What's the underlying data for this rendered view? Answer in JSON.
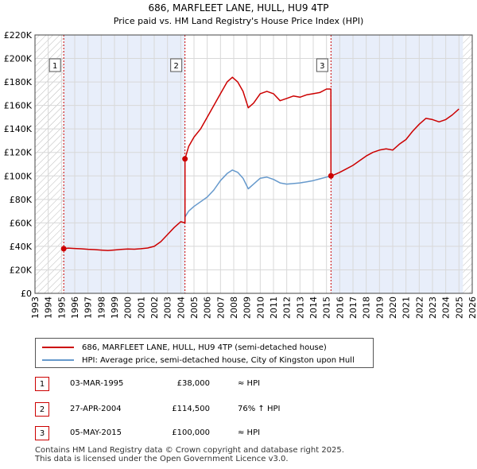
{
  "chart_data": {
    "type": "line",
    "title": "686, MARFLEET LANE, HULL, HU9 4TP",
    "subtitle": "Price paid vs. HM Land Registry's House Price Index (HPI)",
    "xlim": [
      1993,
      2026
    ],
    "ylim": [
      0,
      220000
    ],
    "x_ticks": [
      1993,
      1994,
      1995,
      1996,
      1997,
      1998,
      1999,
      2000,
      2001,
      2002,
      2003,
      2004,
      2005,
      2006,
      2007,
      2008,
      2009,
      2010,
      2011,
      2012,
      2013,
      2014,
      2015,
      2016,
      2017,
      2018,
      2019,
      2020,
      2021,
      2022,
      2023,
      2024,
      2025,
      2026
    ],
    "y_ticks": [
      0,
      20000,
      40000,
      60000,
      80000,
      100000,
      120000,
      140000,
      160000,
      180000,
      200000,
      220000
    ],
    "y_tick_labels": [
      "£0",
      "£20K",
      "£40K",
      "£60K",
      "£80K",
      "£100K",
      "£120K",
      "£140K",
      "£160K",
      "£180K",
      "£200K",
      "£220K"
    ],
    "shaded_ranges": [
      [
        1995.17,
        2004.32
      ],
      [
        2015.34,
        2025.3
      ]
    ],
    "hatched_ranges": [
      [
        1993,
        1995.17
      ],
      [
        2025.3,
        2026
      ]
    ],
    "series": [
      {
        "name": "686, MARFLEET LANE, HULL, HU9 4TP (semi-detached house)",
        "color": "#cc0000",
        "points": [
          [
            1995.17,
            38000
          ],
          [
            1995.5,
            38500
          ],
          [
            1996,
            38200
          ],
          [
            1996.5,
            37900
          ],
          [
            1997,
            37500
          ],
          [
            1997.5,
            37200
          ],
          [
            1998,
            36800
          ],
          [
            1998.5,
            36500
          ],
          [
            1999,
            36900
          ],
          [
            1999.5,
            37400
          ],
          [
            2000,
            37800
          ],
          [
            2000.5,
            37600
          ],
          [
            2001,
            38000
          ],
          [
            2001.5,
            38600
          ],
          [
            2002,
            40000
          ],
          [
            2002.5,
            44000
          ],
          [
            2003,
            50000
          ],
          [
            2003.5,
            56000
          ],
          [
            2004,
            61000
          ],
          [
            2004.32,
            60000
          ],
          [
            2004.32,
            114500
          ],
          [
            2004.6,
            125000
          ],
          [
            2005,
            133000
          ],
          [
            2005.5,
            140000
          ],
          [
            2006,
            150000
          ],
          [
            2006.5,
            160000
          ],
          [
            2007,
            170000
          ],
          [
            2007.5,
            180000
          ],
          [
            2007.9,
            184000
          ],
          [
            2008.3,
            180000
          ],
          [
            2008.7,
            172000
          ],
          [
            2009.1,
            158000
          ],
          [
            2009.5,
            162000
          ],
          [
            2010,
            170000
          ],
          [
            2010.5,
            172000
          ],
          [
            2011,
            170000
          ],
          [
            2011.5,
            164000
          ],
          [
            2012,
            166000
          ],
          [
            2012.5,
            168000
          ],
          [
            2013,
            167000
          ],
          [
            2013.5,
            169000
          ],
          [
            2014,
            170000
          ],
          [
            2014.5,
            171000
          ],
          [
            2015,
            174000
          ],
          [
            2015.33,
            174000
          ],
          [
            2015.34,
            100000
          ],
          [
            2015.7,
            101500
          ],
          [
            2016,
            103000
          ],
          [
            2016.5,
            106000
          ],
          [
            2017,
            109000
          ],
          [
            2017.5,
            113000
          ],
          [
            2018,
            117000
          ],
          [
            2018.5,
            120000
          ],
          [
            2019,
            122000
          ],
          [
            2019.5,
            123000
          ],
          [
            2020,
            122000
          ],
          [
            2020.5,
            127000
          ],
          [
            2021,
            131000
          ],
          [
            2021.5,
            138000
          ],
          [
            2022,
            144000
          ],
          [
            2022.5,
            149000
          ],
          [
            2023,
            148000
          ],
          [
            2023.5,
            146000
          ],
          [
            2024,
            148000
          ],
          [
            2024.5,
            152000
          ],
          [
            2025,
            157000
          ]
        ]
      },
      {
        "name": "HPI: Average price, semi-detached house, City of Kingston upon Hull",
        "color": "#6699cc",
        "points": [
          [
            2004.32,
            65000
          ],
          [
            2004.6,
            70000
          ],
          [
            2005,
            74000
          ],
          [
            2005.5,
            78000
          ],
          [
            2006,
            82000
          ],
          [
            2006.5,
            88000
          ],
          [
            2007,
            96000
          ],
          [
            2007.5,
            102000
          ],
          [
            2007.9,
            105000
          ],
          [
            2008.3,
            103000
          ],
          [
            2008.7,
            98000
          ],
          [
            2009.1,
            89000
          ],
          [
            2009.5,
            93000
          ],
          [
            2010,
            98000
          ],
          [
            2010.5,
            99000
          ],
          [
            2011,
            97000
          ],
          [
            2011.5,
            94000
          ],
          [
            2012,
            93000
          ],
          [
            2012.5,
            93500
          ],
          [
            2013,
            94000
          ],
          [
            2013.5,
            95000
          ],
          [
            2014,
            96000
          ],
          [
            2014.5,
            97500
          ],
          [
            2015,
            99000
          ],
          [
            2015.34,
            100000
          ]
        ]
      }
    ],
    "markers": [
      {
        "label": "1",
        "x": 1995.17,
        "y": 38000
      },
      {
        "label": "2",
        "x": 2004.32,
        "y": 114500
      },
      {
        "label": "3",
        "x": 2015.34,
        "y": 100000
      }
    ]
  },
  "legend": {
    "items": [
      {
        "label": "686, MARFLEET LANE, HULL, HU9 4TP (semi-detached house)",
        "color": "#cc0000"
      },
      {
        "label": "HPI: Average price, semi-detached house, City of Kingston upon Hull",
        "color": "#6699cc"
      }
    ]
  },
  "transactions": [
    {
      "num": "1",
      "date": "03-MAR-1995",
      "price": "£38,000",
      "relation": "≈ HPI"
    },
    {
      "num": "2",
      "date": "27-APR-2004",
      "price": "£114,500",
      "relation": "76% ↑ HPI"
    },
    {
      "num": "3",
      "date": "05-MAY-2015",
      "price": "£100,000",
      "relation": "≈ HPI"
    }
  ],
  "footer": {
    "line1": "Contains HM Land Registry data © Crown copyright and database right 2025.",
    "line2": "This data is licensed under the Open Government Licence v3.0."
  }
}
